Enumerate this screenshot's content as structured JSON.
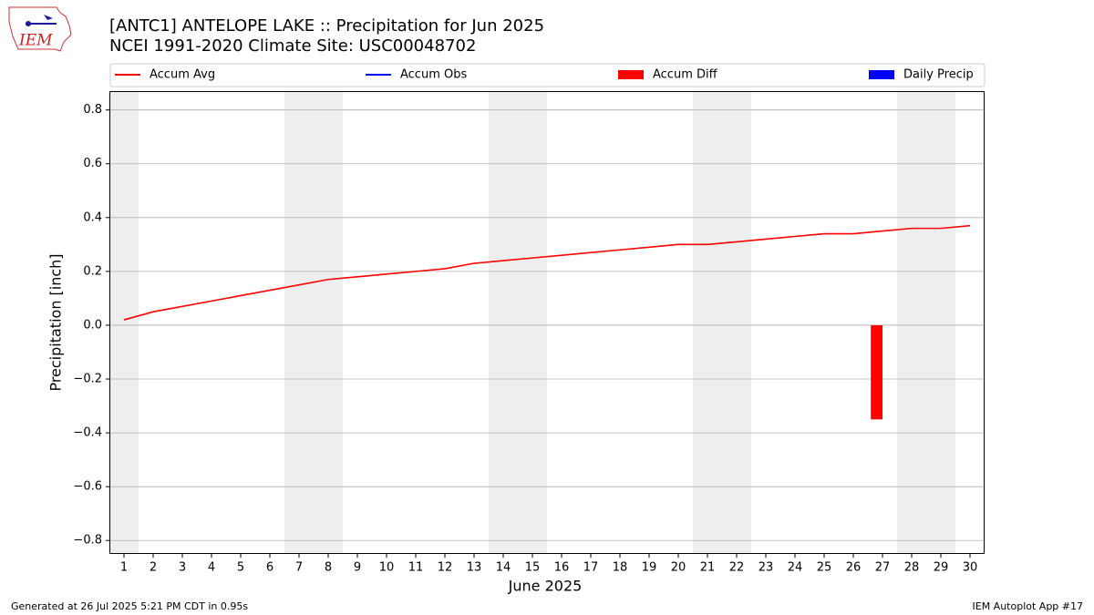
{
  "logo_text": "IEM",
  "footer_left": "Generated at 26 Jul 2025 5:21 PM CDT in 0.95s",
  "footer_right": "IEM Autoplot App #17",
  "chart_data": {
    "type": "line",
    "title": "[ANTC1] ANTELOPE LAKE :: Precipitation for Jun 2025",
    "subtitle": "NCEI 1991-2020 Climate Site: USC00048702",
    "xlabel": "June 2025",
    "ylabel": "Precipitation [inch]",
    "x": [
      1,
      2,
      3,
      4,
      5,
      6,
      7,
      8,
      9,
      10,
      11,
      12,
      13,
      14,
      15,
      16,
      17,
      18,
      19,
      20,
      21,
      22,
      23,
      24,
      25,
      26,
      27,
      28,
      29,
      30
    ],
    "xlim": [
      0.5,
      30.5
    ],
    "xticks": [
      1,
      2,
      3,
      4,
      5,
      6,
      7,
      8,
      9,
      10,
      11,
      12,
      13,
      14,
      15,
      16,
      17,
      18,
      19,
      20,
      21,
      22,
      23,
      24,
      25,
      26,
      27,
      28,
      29,
      30
    ],
    "ylim": [
      -0.85,
      0.87
    ],
    "yticks": [
      {
        "value": -0.8,
        "label": "−0.8"
      },
      {
        "value": -0.6,
        "label": "−0.6"
      },
      {
        "value": -0.4,
        "label": "−0.4"
      },
      {
        "value": -0.2,
        "label": "−0.2"
      },
      {
        "value": 0,
        "label": "0.0"
      },
      {
        "value": 0.2,
        "label": "0.2"
      },
      {
        "value": 0.4,
        "label": "0.4"
      },
      {
        "value": 0.6,
        "label": "0.6"
      },
      {
        "value": 0.8,
        "label": "0.8"
      }
    ],
    "grid": true,
    "series": [
      {
        "name": "Accum Avg",
        "kind": "line",
        "color": "#ff0000",
        "values": [
          0.02,
          0.05,
          0.07,
          0.09,
          0.11,
          0.13,
          0.15,
          0.17,
          0.18,
          0.19,
          0.2,
          0.21,
          0.23,
          0.24,
          0.25,
          0.26,
          0.27,
          0.28,
          0.29,
          0.3,
          0.3,
          0.31,
          0.32,
          0.33,
          0.34,
          0.34,
          0.35,
          0.36,
          0.36,
          0.37
        ]
      },
      {
        "name": "Accum Obs",
        "kind": "line",
        "color": "#0000ff",
        "values": [
          null,
          null,
          null,
          null,
          null,
          null,
          null,
          null,
          null,
          null,
          null,
          null,
          null,
          null,
          null,
          null,
          null,
          null,
          null,
          null,
          null,
          null,
          null,
          null,
          null,
          null,
          null,
          null,
          null,
          null
        ]
      },
      {
        "name": "Accum Diff",
        "kind": "bar",
        "color": "#ff0000",
        "values": [
          null,
          null,
          null,
          null,
          null,
          null,
          null,
          null,
          null,
          null,
          null,
          null,
          null,
          null,
          null,
          null,
          null,
          null,
          null,
          null,
          null,
          null,
          null,
          null,
          null,
          null,
          -0.35,
          null,
          null,
          null
        ]
      },
      {
        "name": "Daily Precip",
        "kind": "bar",
        "color": "#0000ff",
        "values": [
          null,
          null,
          null,
          null,
          null,
          null,
          null,
          null,
          null,
          null,
          null,
          null,
          null,
          null,
          null,
          null,
          null,
          null,
          null,
          null,
          null,
          null,
          null,
          null,
          null,
          null,
          null,
          null,
          null,
          null
        ]
      }
    ]
  }
}
